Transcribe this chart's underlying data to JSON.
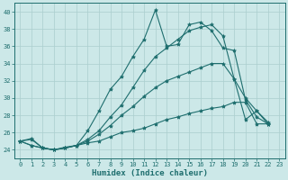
{
  "xlabel": "Humidex (Indice chaleur)",
  "xlim": [
    -0.5,
    23.5
  ],
  "ylim": [
    23,
    41
  ],
  "yticks": [
    24,
    26,
    28,
    30,
    32,
    34,
    36,
    38,
    40
  ],
  "xticks": [
    0,
    1,
    2,
    3,
    4,
    5,
    6,
    7,
    8,
    9,
    10,
    11,
    12,
    13,
    14,
    15,
    16,
    17,
    18,
    19,
    20,
    21,
    22,
    23
  ],
  "bg_color": "#cce8e8",
  "line_color": "#1e6e6e",
  "grid_color": "#aacece",
  "series": [
    {
      "x": [
        0,
        1,
        2,
        3,
        4,
        5,
        6,
        7,
        8,
        9,
        10,
        11,
        12,
        13,
        14,
        15,
        16,
        17,
        18,
        19,
        20,
        21,
        22
      ],
      "y": [
        25.0,
        25.3,
        24.2,
        24.0,
        24.3,
        24.5,
        26.2,
        28.5,
        31.0,
        32.5,
        34.8,
        36.8,
        40.2,
        36.0,
        36.2,
        38.5,
        38.8,
        37.8,
        35.8,
        35.5,
        29.8,
        27.8,
        27.0
      ]
    },
    {
      "x": [
        0,
        1,
        2,
        3,
        4,
        5,
        6,
        7,
        8,
        9,
        10,
        11,
        12,
        13,
        14,
        15,
        16,
        17,
        18,
        19,
        20,
        21,
        22
      ],
      "y": [
        25.0,
        25.2,
        24.2,
        24.0,
        24.2,
        24.5,
        25.2,
        26.2,
        27.8,
        29.2,
        31.2,
        33.2,
        34.8,
        35.8,
        36.8,
        37.8,
        38.2,
        38.5,
        37.2,
        32.2,
        30.0,
        28.5,
        27.2
      ]
    },
    {
      "x": [
        0,
        1,
        2,
        3,
        4,
        5,
        6,
        7,
        8,
        9,
        10,
        11,
        12,
        13,
        14,
        15,
        16,
        17,
        18,
        19,
        20,
        21,
        22
      ],
      "y": [
        25.0,
        24.5,
        24.2,
        24.0,
        24.2,
        24.5,
        25.0,
        25.8,
        26.8,
        28.0,
        29.0,
        30.2,
        31.2,
        32.0,
        32.5,
        33.0,
        33.5,
        34.0,
        34.0,
        32.2,
        27.5,
        28.5,
        27.0
      ]
    },
    {
      "x": [
        0,
        1,
        2,
        3,
        4,
        5,
        6,
        7,
        8,
        9,
        10,
        11,
        12,
        13,
        14,
        15,
        16,
        17,
        18,
        19,
        20,
        21,
        22
      ],
      "y": [
        25.0,
        24.5,
        24.2,
        24.0,
        24.2,
        24.5,
        24.8,
        25.0,
        25.5,
        26.0,
        26.2,
        26.5,
        27.0,
        27.5,
        27.8,
        28.2,
        28.5,
        28.8,
        29.0,
        29.5,
        29.5,
        27.0,
        27.0
      ]
    }
  ],
  "marker": "*",
  "markersize": 3,
  "linewidth": 0.8,
  "tick_fontsize": 5.0,
  "xlabel_fontsize": 6.5
}
